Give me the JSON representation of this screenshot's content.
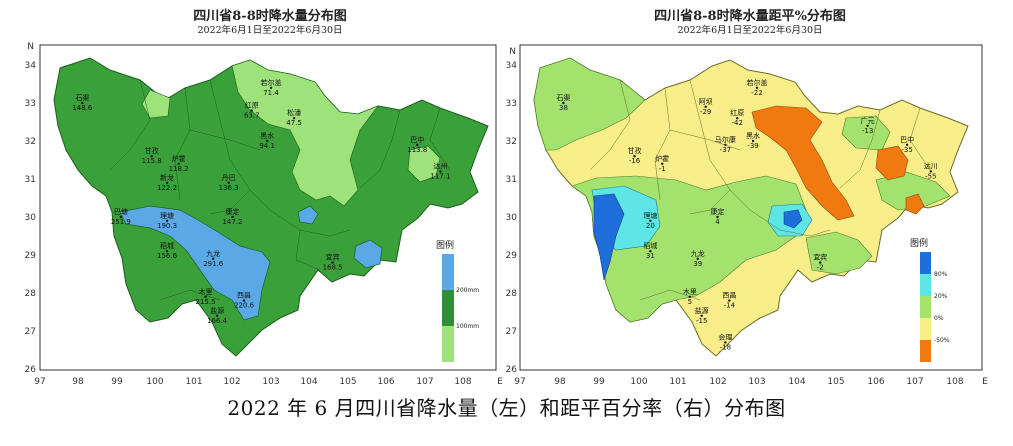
{
  "caption": "2022 年 6 月四川省降水量（左）和距平百分率（右）分布图",
  "left_map": {
    "title": "四川省8-8时降水量分布图",
    "subtitle": "2022年6月1日至2022年6月30日",
    "x_ticks": [
      "97",
      "98",
      "99",
      "100",
      "101",
      "102",
      "103",
      "104",
      "105",
      "106",
      "107",
      "108"
    ],
    "y_ticks": [
      "34",
      "33",
      "32",
      "31",
      "30",
      "29",
      "28",
      "27",
      "26"
    ],
    "north_label": "N",
    "east_label": "E",
    "legend_title": "图例",
    "legend_labels": [
      "200mm",
      "100mm"
    ],
    "legend_colors": [
      "#5aa9e6",
      "#43a047",
      "#2f8f34",
      "#9ee27a"
    ],
    "stations": [
      {
        "name": "若尔盖",
        "value": "71.4",
        "lon": 103.0,
        "lat": 33.4
      },
      {
        "name": "石渠",
        "value": "148.6",
        "lon": 98.1,
        "lat": 33.0
      },
      {
        "name": "红原",
        "value": "63.7",
        "lon": 102.5,
        "lat": 32.8
      },
      {
        "name": "松潘",
        "value": "47.5",
        "lon": 103.6,
        "lat": 32.6
      },
      {
        "name": "甘孜",
        "value": "115.8",
        "lon": 99.9,
        "lat": 31.6
      },
      {
        "name": "炉霍",
        "value": "118.2",
        "lon": 100.6,
        "lat": 31.4
      },
      {
        "name": "黑水",
        "value": "94.1",
        "lon": 102.9,
        "lat": 32.0
      },
      {
        "name": "新龙",
        "value": "122.2",
        "lon": 100.3,
        "lat": 30.9
      },
      {
        "name": "丹巴",
        "value": "136.3",
        "lon": 101.9,
        "lat": 30.9
      },
      {
        "name": "巴塘",
        "value": "251.9",
        "lon": 99.1,
        "lat": 30.0
      },
      {
        "name": "理塘",
        "value": "190.3",
        "lon": 100.3,
        "lat": 29.9
      },
      {
        "name": "康定",
        "value": "147.2",
        "lon": 102.0,
        "lat": 30.0
      },
      {
        "name": "稻城",
        "value": "156.6",
        "lon": 100.3,
        "lat": 29.1
      },
      {
        "name": "九龙",
        "value": "291.6",
        "lon": 101.5,
        "lat": 28.9
      },
      {
        "name": "木里",
        "value": "215.5",
        "lon": 101.3,
        "lat": 27.9
      },
      {
        "name": "西昌",
        "value": "220.6",
        "lon": 102.3,
        "lat": 27.8
      },
      {
        "name": "盐源",
        "value": "166.4",
        "lon": 101.6,
        "lat": 27.4
      },
      {
        "name": "宜宾",
        "value": "168.5",
        "lon": 104.6,
        "lat": 28.8
      },
      {
        "name": "巴中",
        "value": "113.8",
        "lon": 106.8,
        "lat": 31.9
      },
      {
        "name": "达州",
        "value": "117.1",
        "lon": 107.4,
        "lat": 31.2
      }
    ]
  },
  "right_map": {
    "title": "四川省8-8时降水量距平%分布图",
    "subtitle": "2022年6月1日至2022年6月30日",
    "x_ticks": [
      "97",
      "98",
      "99",
      "100",
      "101",
      "102",
      "103",
      "104",
      "105",
      "106",
      "107",
      "108"
    ],
    "y_ticks": [
      "34",
      "33",
      "32",
      "31",
      "30",
      "29",
      "28",
      "27",
      "26"
    ],
    "north_label": "N",
    "east_label": "E",
    "legend_title": "图例",
    "legend_labels": [
      "80%",
      "20%",
      "0%",
      "-50%"
    ],
    "legend_colors": [
      "#1e6fd9",
      "#5ee6e6",
      "#a3e26c",
      "#f7ee8a",
      "#f07a10"
    ],
    "stations": [
      {
        "name": "若尔盖",
        "value": "-22",
        "lon": 103.0,
        "lat": 33.4
      },
      {
        "name": "石渠",
        "value": "38",
        "lon": 98.1,
        "lat": 33.0
      },
      {
        "name": "阿坝",
        "value": "-29",
        "lon": 101.7,
        "lat": 32.9
      },
      {
        "name": "红原",
        "value": "-42",
        "lon": 102.5,
        "lat": 32.6
      },
      {
        "name": "甘孜",
        "value": "-16",
        "lon": 99.9,
        "lat": 31.6
      },
      {
        "name": "炉霍",
        "value": "-1",
        "lon": 100.6,
        "lat": 31.4
      },
      {
        "name": "马尔康",
        "value": "-37",
        "lon": 102.2,
        "lat": 31.9
      },
      {
        "name": "黑水",
        "value": "-39",
        "lon": 102.9,
        "lat": 32.0
      },
      {
        "name": "巴中",
        "value": "-35",
        "lon": 106.8,
        "lat": 31.9
      },
      {
        "name": "广元",
        "value": "-13",
        "lon": 105.8,
        "lat": 32.4
      },
      {
        "name": "达川",
        "value": "-55",
        "lon": 107.4,
        "lat": 31.2
      },
      {
        "name": "理塘",
        "value": "20",
        "lon": 100.3,
        "lat": 29.9
      },
      {
        "name": "康定",
        "value": "4",
        "lon": 102.0,
        "lat": 30.0
      },
      {
        "name": "九龙",
        "value": "39",
        "lon": 101.5,
        "lat": 28.9
      },
      {
        "name": "稻城",
        "value": "31",
        "lon": 100.3,
        "lat": 29.1
      },
      {
        "name": "木里",
        "value": "5",
        "lon": 101.3,
        "lat": 27.9
      },
      {
        "name": "西昌",
        "value": "-14",
        "lon": 102.3,
        "lat": 27.8
      },
      {
        "name": "会理",
        "value": "-18",
        "lon": 102.2,
        "lat": 26.7
      },
      {
        "name": "盐源",
        "value": "-15",
        "lon": 101.6,
        "lat": 27.4
      },
      {
        "name": "宜宾",
        "value": "-2",
        "lon": 104.6,
        "lat": 28.8
      }
    ]
  }
}
